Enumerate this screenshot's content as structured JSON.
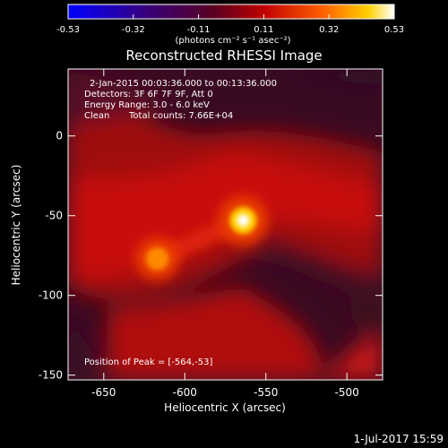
{
  "chart_data": {
    "type": "heatmap",
    "title": "Reconstructed RHESSI Image",
    "xlabel": "Heliocentric X (arcsec)",
    "ylabel": "Heliocentric Y (arcsec)",
    "xlim": [
      -672,
      -478
    ],
    "ylim": [
      -153,
      42
    ],
    "x_ticks": [
      -650,
      -600,
      -550,
      -500
    ],
    "y_ticks": [
      0,
      -50,
      -100,
      -150
    ],
    "colorbar": {
      "range": [
        -0.53,
        0.53
      ],
      "ticks": [
        "-0.53",
        "-0.32",
        "-0.11",
        "0.11",
        "0.32",
        "0.53"
      ],
      "unit_label": "(photons cm⁻² s⁻¹ asec⁻²)",
      "colormap": "blue-purple-red-yellow-white"
    },
    "annotations": [
      "2-Jan-2015 00:03:36.000 to 00:13:36.000",
      "Detectors: 3F 6F 7F 9F, Att 0",
      "Energy Range: 3.0 - 6.0 keV",
      "Clean",
      "Total counts: 7.66E+04"
    ],
    "peak_label": "Position of Peak = [-564,-53]",
    "sources": [
      {
        "x": -564,
        "y": -53,
        "relative_intensity": 1.0
      },
      {
        "x": -617,
        "y": -77,
        "relative_intensity": 0.62
      }
    ]
  },
  "footer": {
    "timestamp": "1-Jul-2017 15:59"
  }
}
